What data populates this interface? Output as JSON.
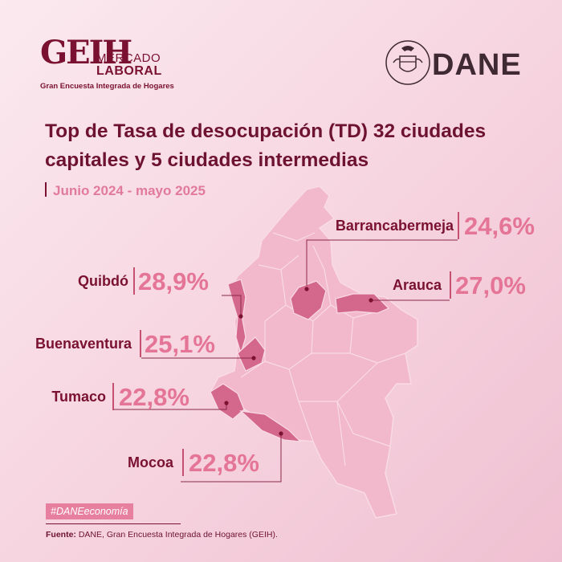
{
  "header": {
    "geih_logo": {
      "mark": "GEIH",
      "line1": "MERCADO",
      "line2": "LABORAL",
      "subtitle": "Gran Encuesta Integrada de Hogares"
    },
    "dane_logo": {
      "emblem": "colombia-coat-of-arms-icon",
      "wordmark": "DANE"
    }
  },
  "title": "Top de Tasa de desocupación (TD) 32 ciudades capitales y 5 ciudades intermedias",
  "period": "Junio 2024 - mayo 2025",
  "map": {
    "region": "Colombia",
    "base_color": "#f2b8cb",
    "highlight_color": "#d4678c",
    "cities": [
      {
        "name": "Barrancabermeja",
        "value": "24,6%"
      },
      {
        "name": "Quibdó",
        "value": "28,9%"
      },
      {
        "name": "Arauca",
        "value": "27,0%"
      },
      {
        "name": "Buenaventura",
        "value": "25,1%"
      },
      {
        "name": "Tumaco",
        "value": "22,8%"
      },
      {
        "name": "Mocoa",
        "value": "22,8%"
      }
    ]
  },
  "footer": {
    "hashtag": "#DANEeconomía",
    "source_label": "Fuente:",
    "source_text": " DANE, Gran Encuesta Integrada de Hogares (GEIH)."
  },
  "colors": {
    "title": "#6e1232",
    "accent": "#e57597",
    "background": "#f6d3df"
  }
}
